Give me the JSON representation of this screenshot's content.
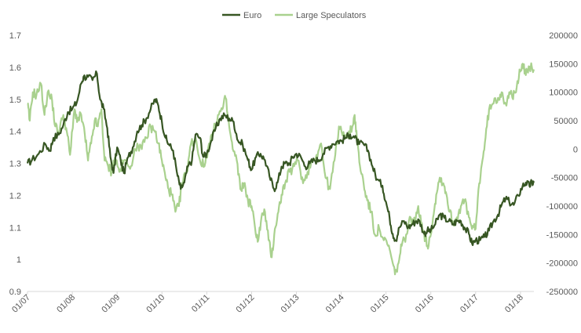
{
  "chart_data": {
    "type": "line",
    "title": "",
    "legend": {
      "position": "top-center"
    },
    "grid": false,
    "x_ticks": [
      "01/07",
      "01/08",
      "01/09",
      "01/10",
      "01/11",
      "01/12",
      "01/13",
      "01/14",
      "01/15",
      "01/16",
      "01/17",
      "01/18"
    ],
    "x_range": [
      2007.0,
      2018.3
    ],
    "y_left": {
      "range": [
        0.9,
        1.7
      ],
      "ticks": [
        "0.9",
        "1",
        "1.1",
        "1.2",
        "1.3",
        "1.4",
        "1.5",
        "1.6",
        "1.7"
      ]
    },
    "y_right": {
      "range": [
        -250000,
        200000
      ],
      "ticks": [
        "-250000",
        "-200000",
        "-150000",
        "-100000",
        "-50000",
        "0",
        "50000",
        "100000",
        "150000",
        "200000"
      ]
    },
    "series": [
      {
        "name": "Euro",
        "axis": "left",
        "color": "#375623",
        "points": [
          [
            2007.0,
            1.3
          ],
          [
            2007.1,
            1.31
          ],
          [
            2007.25,
            1.33
          ],
          [
            2007.4,
            1.36
          ],
          [
            2007.5,
            1.34
          ],
          [
            2007.58,
            1.38
          ],
          [
            2007.7,
            1.39
          ],
          [
            2007.8,
            1.42
          ],
          [
            2007.9,
            1.46
          ],
          [
            2008.0,
            1.47
          ],
          [
            2008.1,
            1.49
          ],
          [
            2008.2,
            1.55
          ],
          [
            2008.25,
            1.57
          ],
          [
            2008.35,
            1.57
          ],
          [
            2008.45,
            1.56
          ],
          [
            2008.55,
            1.58
          ],
          [
            2008.62,
            1.5
          ],
          [
            2008.7,
            1.47
          ],
          [
            2008.78,
            1.41
          ],
          [
            2008.85,
            1.32
          ],
          [
            2008.92,
            1.27
          ],
          [
            2009.0,
            1.35
          ],
          [
            2009.08,
            1.31
          ],
          [
            2009.15,
            1.27
          ],
          [
            2009.25,
            1.32
          ],
          [
            2009.35,
            1.35
          ],
          [
            2009.45,
            1.4
          ],
          [
            2009.55,
            1.42
          ],
          [
            2009.65,
            1.44
          ],
          [
            2009.75,
            1.47
          ],
          [
            2009.85,
            1.5
          ],
          [
            2009.92,
            1.48
          ],
          [
            2010.0,
            1.43
          ],
          [
            2010.08,
            1.38
          ],
          [
            2010.15,
            1.36
          ],
          [
            2010.25,
            1.34
          ],
          [
            2010.35,
            1.26
          ],
          [
            2010.42,
            1.22
          ],
          [
            2010.5,
            1.24
          ],
          [
            2010.58,
            1.29
          ],
          [
            2010.67,
            1.31
          ],
          [
            2010.75,
            1.39
          ],
          [
            2010.85,
            1.38
          ],
          [
            2010.92,
            1.32
          ],
          [
            2011.0,
            1.33
          ],
          [
            2011.1,
            1.37
          ],
          [
            2011.2,
            1.41
          ],
          [
            2011.3,
            1.44
          ],
          [
            2011.4,
            1.45
          ],
          [
            2011.5,
            1.44
          ],
          [
            2011.6,
            1.43
          ],
          [
            2011.7,
            1.37
          ],
          [
            2011.8,
            1.36
          ],
          [
            2011.92,
            1.31
          ],
          [
            2012.0,
            1.28
          ],
          [
            2012.1,
            1.32
          ],
          [
            2012.2,
            1.33
          ],
          [
            2012.3,
            1.31
          ],
          [
            2012.4,
            1.26
          ],
          [
            2012.5,
            1.22
          ],
          [
            2012.58,
            1.24
          ],
          [
            2012.67,
            1.29
          ],
          [
            2012.75,
            1.3
          ],
          [
            2012.85,
            1.3
          ],
          [
            2012.92,
            1.32
          ],
          [
            2013.0,
            1.33
          ],
          [
            2013.1,
            1.32
          ],
          [
            2013.2,
            1.29
          ],
          [
            2013.3,
            1.3
          ],
          [
            2013.4,
            1.31
          ],
          [
            2013.5,
            1.31
          ],
          [
            2013.6,
            1.33
          ],
          [
            2013.7,
            1.35
          ],
          [
            2013.8,
            1.36
          ],
          [
            2013.92,
            1.37
          ],
          [
            2014.0,
            1.37
          ],
          [
            2014.1,
            1.38
          ],
          [
            2014.2,
            1.39
          ],
          [
            2014.3,
            1.38
          ],
          [
            2014.4,
            1.36
          ],
          [
            2014.5,
            1.36
          ],
          [
            2014.6,
            1.34
          ],
          [
            2014.7,
            1.29
          ],
          [
            2014.8,
            1.25
          ],
          [
            2014.92,
            1.23
          ],
          [
            2015.0,
            1.18
          ],
          [
            2015.08,
            1.13
          ],
          [
            2015.15,
            1.08
          ],
          [
            2015.22,
            1.06
          ],
          [
            2015.3,
            1.1
          ],
          [
            2015.4,
            1.12
          ],
          [
            2015.5,
            1.1
          ],
          [
            2015.58,
            1.11
          ],
          [
            2015.67,
            1.12
          ],
          [
            2015.75,
            1.12
          ],
          [
            2015.85,
            1.08
          ],
          [
            2015.92,
            1.09
          ],
          [
            2016.0,
            1.09
          ],
          [
            2016.1,
            1.11
          ],
          [
            2016.2,
            1.14
          ],
          [
            2016.3,
            1.13
          ],
          [
            2016.4,
            1.12
          ],
          [
            2016.5,
            1.11
          ],
          [
            2016.58,
            1.12
          ],
          [
            2016.67,
            1.12
          ],
          [
            2016.75,
            1.1
          ],
          [
            2016.85,
            1.08
          ],
          [
            2016.92,
            1.05
          ],
          [
            2017.0,
            1.06
          ],
          [
            2017.1,
            1.06
          ],
          [
            2017.2,
            1.07
          ],
          [
            2017.3,
            1.09
          ],
          [
            2017.4,
            1.12
          ],
          [
            2017.5,
            1.14
          ],
          [
            2017.58,
            1.17
          ],
          [
            2017.67,
            1.19
          ],
          [
            2017.75,
            1.18
          ],
          [
            2017.85,
            1.17
          ],
          [
            2017.95,
            1.2
          ],
          [
            2018.05,
            1.23
          ],
          [
            2018.12,
            1.24
          ],
          [
            2018.2,
            1.23
          ],
          [
            2018.25,
            1.24
          ],
          [
            2018.3,
            1.24
          ]
        ]
      },
      {
        "name": "Large Speculators",
        "axis": "right",
        "color": "#a9d18e",
        "points": [
          [
            2007.0,
            80000
          ],
          [
            2007.05,
            50000
          ],
          [
            2007.12,
            100000
          ],
          [
            2007.2,
            95000
          ],
          [
            2007.3,
            115000
          ],
          [
            2007.38,
            60000
          ],
          [
            2007.45,
            100000
          ],
          [
            2007.55,
            85000
          ],
          [
            2007.62,
            40000
          ],
          [
            2007.7,
            30000
          ],
          [
            2007.8,
            60000
          ],
          [
            2007.88,
            30000
          ],
          [
            2007.95,
            -10000
          ],
          [
            2008.05,
            70000
          ],
          [
            2008.12,
            50000
          ],
          [
            2008.2,
            60000
          ],
          [
            2008.28,
            25000
          ],
          [
            2008.35,
            -20000
          ],
          [
            2008.42,
            10000
          ],
          [
            2008.5,
            50000
          ],
          [
            2008.57,
            40000
          ],
          [
            2008.65,
            70000
          ],
          [
            2008.72,
            -20000
          ],
          [
            2008.8,
            -30000
          ],
          [
            2008.88,
            -40000
          ],
          [
            2008.95,
            -15000
          ],
          [
            2009.05,
            -40000
          ],
          [
            2009.15,
            -20000
          ],
          [
            2009.25,
            -30000
          ],
          [
            2009.35,
            -20000
          ],
          [
            2009.45,
            10000
          ],
          [
            2009.55,
            0
          ],
          [
            2009.65,
            20000
          ],
          [
            2009.75,
            40000
          ],
          [
            2009.85,
            30000
          ],
          [
            2009.92,
            10000
          ],
          [
            2010.0,
            -20000
          ],
          [
            2010.08,
            -50000
          ],
          [
            2010.15,
            -70000
          ],
          [
            2010.22,
            -80000
          ],
          [
            2010.3,
            -110000
          ],
          [
            2010.38,
            -100000
          ],
          [
            2010.45,
            -60000
          ],
          [
            2010.55,
            -40000
          ],
          [
            2010.65,
            10000
          ],
          [
            2010.75,
            20000
          ],
          [
            2010.85,
            -20000
          ],
          [
            2010.95,
            -30000
          ],
          [
            2011.05,
            10000
          ],
          [
            2011.15,
            30000
          ],
          [
            2011.25,
            60000
          ],
          [
            2011.35,
            70000
          ],
          [
            2011.42,
            90000
          ],
          [
            2011.5,
            40000
          ],
          [
            2011.58,
            0
          ],
          [
            2011.67,
            -20000
          ],
          [
            2011.75,
            -70000
          ],
          [
            2011.83,
            -60000
          ],
          [
            2011.92,
            -90000
          ],
          [
            2012.0,
            -100000
          ],
          [
            2012.08,
            -140000
          ],
          [
            2012.15,
            -160000
          ],
          [
            2012.22,
            -120000
          ],
          [
            2012.3,
            -110000
          ],
          [
            2012.38,
            -160000
          ],
          [
            2012.45,
            -190000
          ],
          [
            2012.52,
            -140000
          ],
          [
            2012.6,
            -110000
          ],
          [
            2012.67,
            -80000
          ],
          [
            2012.75,
            -60000
          ],
          [
            2012.85,
            -40000
          ],
          [
            2012.95,
            -30000
          ],
          [
            2013.05,
            -20000
          ],
          [
            2013.15,
            -60000
          ],
          [
            2013.25,
            -40000
          ],
          [
            2013.35,
            -20000
          ],
          [
            2013.45,
            -10000
          ],
          [
            2013.55,
            10000
          ],
          [
            2013.65,
            -50000
          ],
          [
            2013.75,
            -70000
          ],
          [
            2013.85,
            -20000
          ],
          [
            2013.95,
            40000
          ],
          [
            2014.05,
            30000
          ],
          [
            2014.15,
            20000
          ],
          [
            2014.25,
            40000
          ],
          [
            2014.3,
            60000
          ],
          [
            2014.35,
            20000
          ],
          [
            2014.42,
            -30000
          ],
          [
            2014.5,
            -60000
          ],
          [
            2014.58,
            -90000
          ],
          [
            2014.67,
            -110000
          ],
          [
            2014.75,
            -150000
          ],
          [
            2014.85,
            -140000
          ],
          [
            2014.95,
            -160000
          ],
          [
            2015.05,
            -170000
          ],
          [
            2015.12,
            -190000
          ],
          [
            2015.2,
            -220000
          ],
          [
            2015.28,
            -200000
          ],
          [
            2015.35,
            -170000
          ],
          [
            2015.45,
            -150000
          ],
          [
            2015.55,
            -120000
          ],
          [
            2015.65,
            -130000
          ],
          [
            2015.72,
            -100000
          ],
          [
            2015.8,
            -130000
          ],
          [
            2015.88,
            -160000
          ],
          [
            2015.95,
            -170000
          ],
          [
            2016.05,
            -120000
          ],
          [
            2016.12,
            -80000
          ],
          [
            2016.2,
            -50000
          ],
          [
            2016.28,
            -60000
          ],
          [
            2016.35,
            -80000
          ],
          [
            2016.42,
            -110000
          ],
          [
            2016.5,
            -130000
          ],
          [
            2016.58,
            -120000
          ],
          [
            2016.67,
            -100000
          ],
          [
            2016.75,
            -90000
          ],
          [
            2016.85,
            -120000
          ],
          [
            2016.92,
            -140000
          ],
          [
            2017.0,
            -140000
          ],
          [
            2017.08,
            -60000
          ],
          [
            2017.15,
            -20000
          ],
          [
            2017.22,
            20000
          ],
          [
            2017.3,
            70000
          ],
          [
            2017.4,
            80000
          ],
          [
            2017.5,
            90000
          ],
          [
            2017.58,
            100000
          ],
          [
            2017.67,
            80000
          ],
          [
            2017.75,
            100000
          ],
          [
            2017.82,
            90000
          ],
          [
            2017.9,
            100000
          ],
          [
            2017.98,
            140000
          ],
          [
            2018.05,
            150000
          ],
          [
            2018.12,
            130000
          ],
          [
            2018.2,
            145000
          ],
          [
            2018.3,
            140000
          ]
        ]
      }
    ]
  }
}
